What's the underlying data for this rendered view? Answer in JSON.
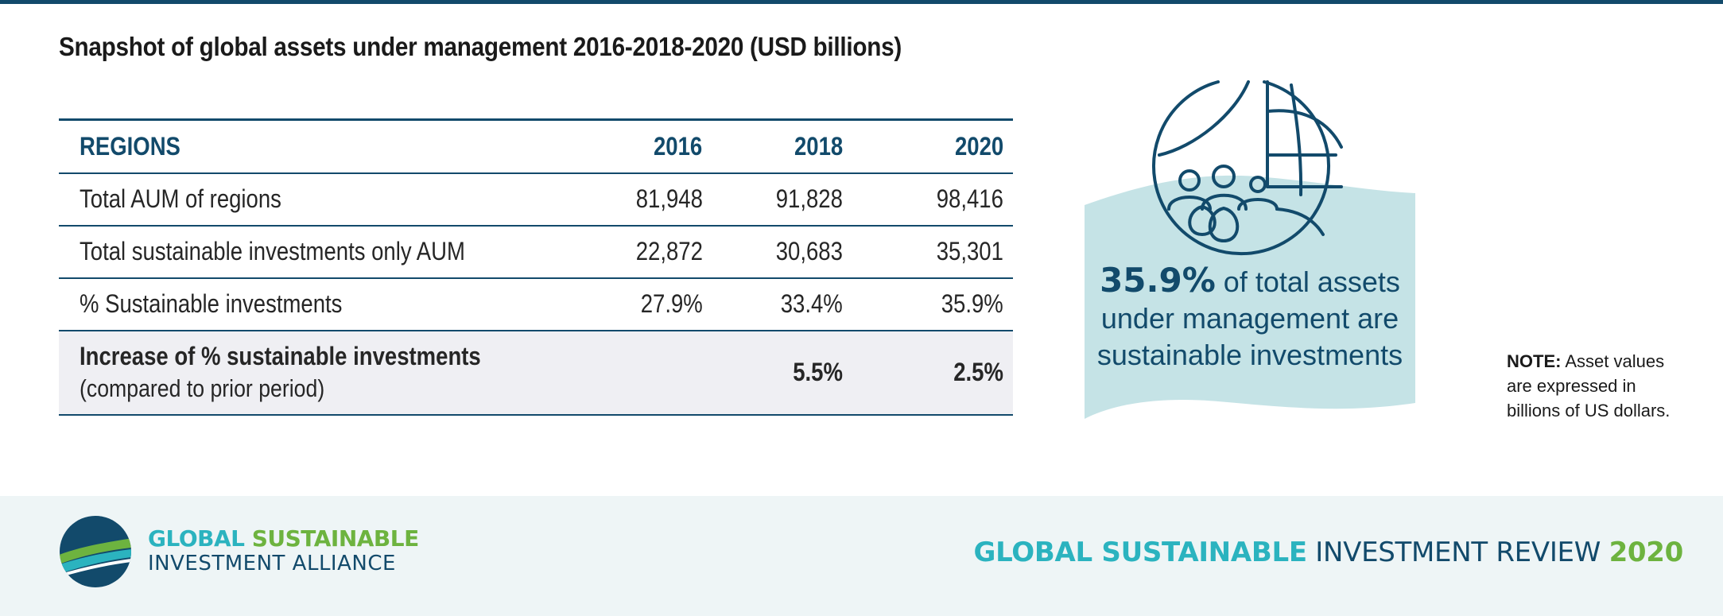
{
  "title": "Snapshot of global assets under management 2016-2018-2020 (USD billions)",
  "table": {
    "headers": [
      "REGIONS",
      "2016",
      "2018",
      "2020"
    ],
    "rows": [
      {
        "label": "Total AUM of regions",
        "v2016": "81,948",
        "v2018": "91,828",
        "v2020": "98,416"
      },
      {
        "label": "Total sustainable investments only AUM",
        "v2016": "22,872",
        "v2018": "30,683",
        "v2020": "35,301"
      },
      {
        "label": "% Sustainable investments",
        "v2016": "27.9%",
        "v2018": "33.4%",
        "v2020": "35.9%"
      }
    ],
    "highlight_row": {
      "label": "Increase of % sustainable investments",
      "sublabel": "(compared to prior period)",
      "v2016": "",
      "v2018": "5.5%",
      "v2020": "2.5%"
    }
  },
  "callout": {
    "icon": "globe-people-icon",
    "percent": "35.9%",
    "text_line1": " of total assets",
    "text_line2": "under management are",
    "text_line3": "sustainable investments"
  },
  "note": {
    "label": "NOTE:",
    "text": " Asset values are expressed in billions of US dollars."
  },
  "footer": {
    "logo_word1": "GLOBAL",
    "logo_word2": " SUSTAINABLE",
    "logo_line2": "INVESTMENT ALLIANCE",
    "review_part1": "GLOBAL SUSTAINABLE",
    "review_part2": " INVESTMENT REVIEW ",
    "review_part3": "2020"
  },
  "colors": {
    "navy": "#124a6b",
    "teal": "#2bb3bf",
    "green": "#6db33f",
    "callout_bg": "#c5e3e6",
    "highlight_bg": "#efeff3",
    "footer_bg": "#eef5f6"
  }
}
